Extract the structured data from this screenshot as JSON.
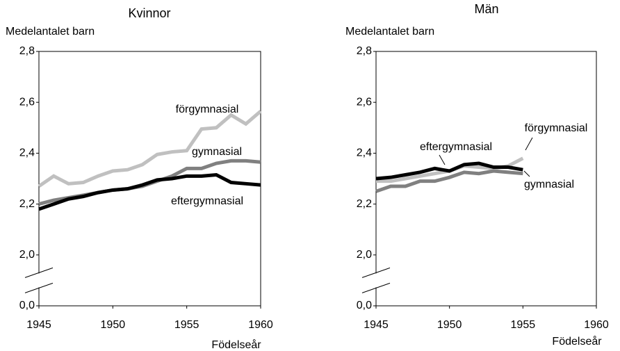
{
  "chart_data": [
    {
      "type": "line",
      "title": "Kvinnor",
      "ylabel": "Medelantalet barn",
      "xlabel": "Födelseår",
      "x": [
        1945,
        1946,
        1947,
        1948,
        1949,
        1950,
        1951,
        1952,
        1953,
        1954,
        1955,
        1956,
        1957,
        1958,
        1959,
        1960
      ],
      "series": [
        {
          "name": "förgymnasial",
          "color": "#c0c0c0",
          "values": [
            2.27,
            2.31,
            2.28,
            2.285,
            2.31,
            2.33,
            2.335,
            2.355,
            2.395,
            2.405,
            2.41,
            2.495,
            2.5,
            2.55,
            2.515,
            2.565
          ]
        },
        {
          "name": "gymnasial",
          "color": "#808080",
          "values": [
            2.2,
            2.215,
            2.225,
            2.235,
            2.245,
            2.255,
            2.26,
            2.27,
            2.29,
            2.31,
            2.34,
            2.34,
            2.36,
            2.37,
            2.37,
            2.365
          ]
        },
        {
          "name": "eftergymnasial",
          "color": "#000000",
          "values": [
            2.18,
            2.2,
            2.22,
            2.23,
            2.245,
            2.255,
            2.26,
            2.275,
            2.295,
            2.3,
            2.31,
            2.31,
            2.315,
            2.285,
            2.28,
            2.275
          ]
        }
      ],
      "xlim": [
        1945,
        1960
      ],
      "xticks": [
        1945,
        1950,
        1955,
        1960
      ],
      "ylim": [
        0,
        2.8
      ],
      "ybreak": [
        0,
        1.8
      ],
      "yticks": [
        {
          "value": 0,
          "label": "0,0"
        },
        {
          "value": 2.0,
          "label": "2,0"
        },
        {
          "value": 2.2,
          "label": "2,2"
        },
        {
          "value": 2.4,
          "label": "2,4"
        },
        {
          "value": 2.6,
          "label": "2,6"
        },
        {
          "value": 2.8,
          "label": "2,8"
        }
      ]
    },
    {
      "type": "line",
      "title": "Män",
      "ylabel": "Medelantalet barn",
      "xlabel": "Födelseår",
      "x": [
        1945,
        1946,
        1947,
        1948,
        1949,
        1950,
        1951,
        1952,
        1953,
        1954,
        1955
      ],
      "series": [
        {
          "name": "förgymnasial",
          "color": "#c0c0c0",
          "values": [
            2.29,
            2.29,
            2.3,
            2.31,
            2.32,
            2.33,
            2.35,
            2.345,
            2.34,
            2.35,
            2.38
          ]
        },
        {
          "name": "gymnasial",
          "color": "#808080",
          "values": [
            2.25,
            2.27,
            2.27,
            2.29,
            2.29,
            2.305,
            2.325,
            2.32,
            2.33,
            2.325,
            2.32
          ]
        },
        {
          "name": "eftergymnasial",
          "color": "#000000",
          "values": [
            2.3,
            2.305,
            2.315,
            2.325,
            2.34,
            2.33,
            2.355,
            2.36,
            2.345,
            2.345,
            2.335
          ]
        }
      ],
      "xlim": [
        1945,
        1960
      ],
      "xticks": [
        1945,
        1950,
        1955,
        1960
      ],
      "ylim": [
        0,
        2.8
      ],
      "ybreak": [
        0,
        1.8
      ],
      "yticks": [
        {
          "value": 0,
          "label": "0,0"
        },
        {
          "value": 2.0,
          "label": "2,0"
        },
        {
          "value": 2.2,
          "label": "2,2"
        },
        {
          "value": 2.4,
          "label": "2,4"
        },
        {
          "value": 2.6,
          "label": "2,6"
        },
        {
          "value": 2.8,
          "label": "2,8"
        }
      ]
    }
  ]
}
